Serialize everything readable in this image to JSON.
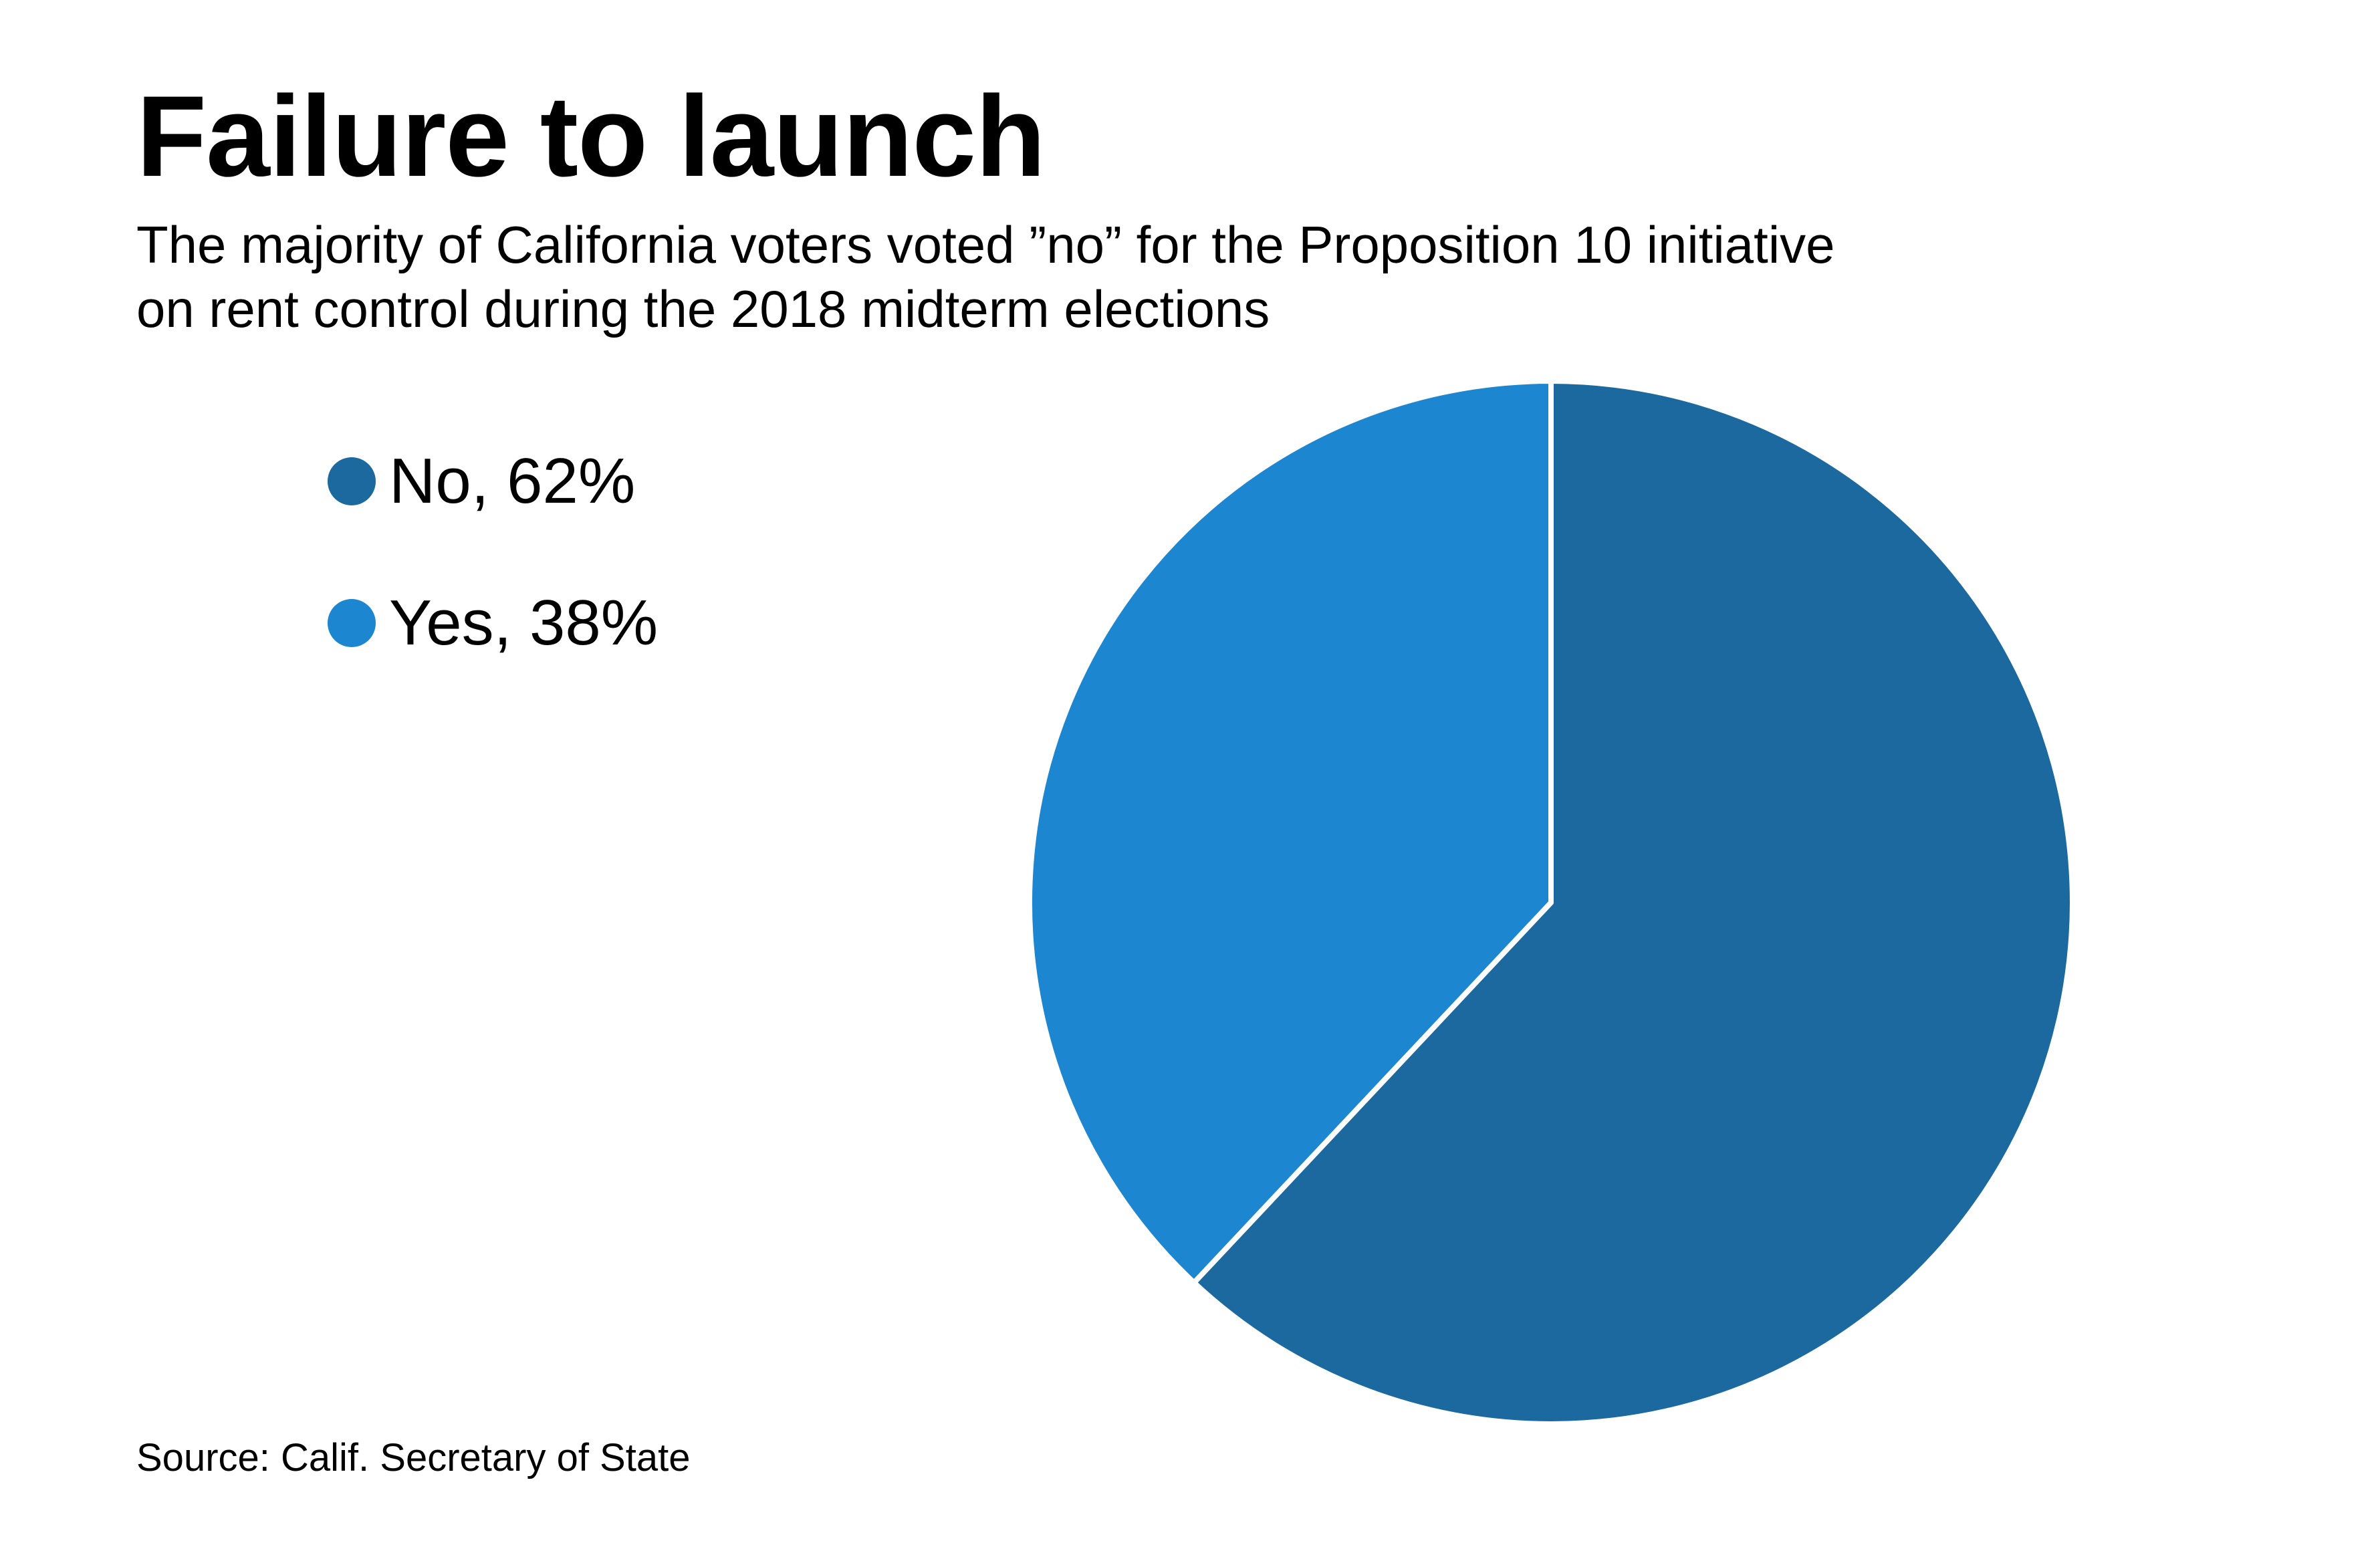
{
  "title": "Failure to launch",
  "subtitle": [
    "The majority of California voters voted ”no” for the Proposition 10 initiative",
    "on rent control during the 2018 midterm elections"
  ],
  "source": "Source: Calif. Secretary of State",
  "legend": [
    {
      "label": "No, 62%",
      "color": "#1b699f"
    },
    {
      "label": "Yes, 38%",
      "color": "#1c86d1"
    }
  ],
  "chart_data": {
    "type": "pie",
    "title": "Failure to launch",
    "categories": [
      "No",
      "Yes"
    ],
    "values": [
      62,
      38
    ],
    "unit": "%",
    "colors": [
      "#1b699f",
      "#1c86d1"
    ],
    "legend_position": "left",
    "start_angle": "12 o'clock, clockwise"
  }
}
